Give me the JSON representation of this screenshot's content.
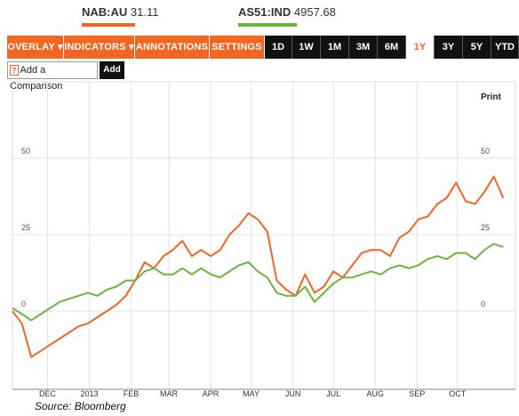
{
  "header": {
    "tickers": [
      {
        "symbol": "NAB:AU",
        "price": "31.11",
        "color": "#f26522"
      },
      {
        "symbol": "AS51:IND",
        "price": "4957.68",
        "color": "#6db33f"
      }
    ]
  },
  "toolbar": {
    "menus": [
      "OVERLAY ▾",
      "INDICATORS ▾",
      "ANNOTATIONS ▾",
      "SETTINGS ▾"
    ],
    "ranges": [
      "1D",
      "1W",
      "1M",
      "3M",
      "6M",
      "1Y",
      "3Y",
      "5Y",
      "YTD"
    ],
    "active_range": "1Y"
  },
  "compare": {
    "help": "?",
    "label": "Add a Comparison",
    "add_button": "Add"
  },
  "print_label": "Print",
  "source": "Source: Bloomberg",
  "chart_data": {
    "type": "line",
    "x": [
      "2012-11-05",
      "2012-11-12",
      "2012-11-19",
      "2012-11-26",
      "2012-12-03",
      "2012-12-10",
      "2012-12-17",
      "2012-12-24",
      "2012-12-31",
      "2013-01-07",
      "2013-01-14",
      "2013-01-21",
      "2013-01-28",
      "2013-02-04",
      "2013-02-11",
      "2013-02-18",
      "2013-02-25",
      "2013-03-04",
      "2013-03-11",
      "2013-03-18",
      "2013-03-25",
      "2013-04-01",
      "2013-04-08",
      "2013-04-15",
      "2013-04-22",
      "2013-04-29",
      "2013-05-06",
      "2013-05-13",
      "2013-05-20",
      "2013-05-27",
      "2013-06-03",
      "2013-06-10",
      "2013-06-17",
      "2013-06-24",
      "2013-07-01",
      "2013-07-08",
      "2013-07-15",
      "2013-07-22",
      "2013-07-29",
      "2013-08-05",
      "2013-08-12",
      "2013-08-19",
      "2013-08-26",
      "2013-09-02",
      "2013-09-09",
      "2013-09-16",
      "2013-09-23",
      "2013-09-30",
      "2013-10-07",
      "2013-10-14",
      "2013-10-21",
      "2013-10-28",
      "2013-11-04"
    ],
    "series": [
      {
        "name": "NAB:AU",
        "color": "#f26522",
        "values": [
          0,
          -4,
          -15,
          -13,
          -11,
          -9,
          -7,
          -5,
          -4,
          -2,
          0,
          2,
          5,
          10,
          16,
          14,
          18,
          20,
          23,
          18,
          20,
          18,
          20,
          25,
          28,
          32,
          30,
          26,
          10,
          7,
          5,
          12,
          6,
          8,
          13,
          11,
          15,
          19,
          20,
          20,
          18,
          24,
          26,
          30,
          31,
          35,
          37,
          42,
          36,
          35,
          39,
          44,
          37
        ],
        "color_key": "orange"
      },
      {
        "name": "AS51:IND",
        "color": "#6db33f",
        "values": [
          1,
          -1,
          -3,
          -1,
          1,
          3,
          4,
          5,
          6,
          5,
          7,
          8,
          10,
          10,
          13,
          14,
          12,
          12,
          14,
          12,
          14,
          12,
          11,
          13,
          15,
          16,
          13,
          11,
          6,
          5,
          5,
          8,
          3,
          6,
          9,
          11,
          11,
          12,
          13,
          12,
          14,
          15,
          14,
          15,
          17,
          18,
          17,
          19,
          19,
          17,
          20,
          22,
          21
        ]
      }
    ],
    "x_tick_labels": [
      "DEC",
      "2013",
      "FEB",
      "MAR",
      "APR",
      "MAY",
      "JUN",
      "JUL",
      "AUG",
      "SEP",
      "OCT"
    ],
    "x_tick_dates": [
      "2012-12-01",
      "2013-01-01",
      "2013-02-01",
      "2013-03-01",
      "2013-04-01",
      "2013-05-01",
      "2013-06-01",
      "2013-07-01",
      "2013-08-01",
      "2013-09-01",
      "2013-10-01"
    ],
    "y_ticks": [
      50,
      25,
      0
    ],
    "ylim": [
      -30,
      60
    ],
    "grid": true,
    "title": "",
    "xlabel": "",
    "ylabel": ""
  }
}
